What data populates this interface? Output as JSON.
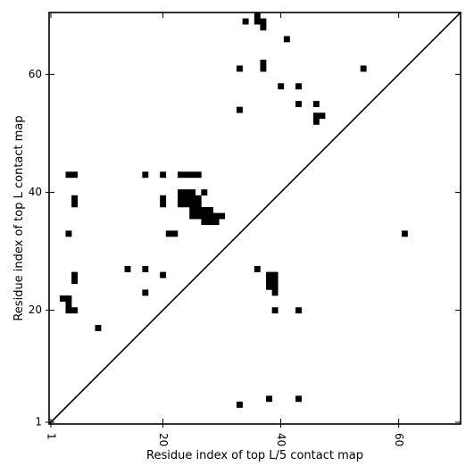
{
  "chart_data": {
    "type": "heatmap",
    "title": "",
    "xlabel": "Residue index of top L/5 contact map",
    "ylabel": "Residue index of top L contact map",
    "xlim": [
      0.7,
      70.5
    ],
    "ylim": [
      0.7,
      70.5
    ],
    "x_ticks": [
      1,
      20,
      40,
      60
    ],
    "y_ticks": [
      1,
      20,
      40,
      60
    ],
    "x_tick_labels": [
      "1",
      "20",
      "40",
      "60"
    ],
    "y_tick_labels": [
      "1",
      "20",
      "40",
      "60"
    ],
    "x_tick_rotation": -90,
    "diagonal_line": true,
    "cell_color": "#000000",
    "grid": false,
    "cells": [
      [
        34,
        69
      ],
      [
        36,
        69
      ],
      [
        37,
        69
      ],
      [
        36,
        70
      ],
      [
        37,
        68
      ],
      [
        41,
        66
      ],
      [
        37,
        62
      ],
      [
        37,
        61
      ],
      [
        33,
        61
      ],
      [
        54,
        61
      ],
      [
        40,
        58
      ],
      [
        43,
        58
      ],
      [
        43,
        55
      ],
      [
        46,
        55
      ],
      [
        33,
        54
      ],
      [
        46,
        53
      ],
      [
        47,
        53
      ],
      [
        46,
        52
      ],
      [
        4,
        43
      ],
      [
        5,
        43
      ],
      [
        17,
        43
      ],
      [
        20,
        43
      ],
      [
        23,
        43
      ],
      [
        24,
        43
      ],
      [
        25,
        43
      ],
      [
        26,
        43
      ],
      [
        23,
        40
      ],
      [
        24,
        40
      ],
      [
        25,
        40
      ],
      [
        27,
        40
      ],
      [
        5,
        39
      ],
      [
        20,
        39
      ],
      [
        23,
        39
      ],
      [
        24,
        39
      ],
      [
        25,
        39
      ],
      [
        26,
        39
      ],
      [
        5,
        38
      ],
      [
        20,
        38
      ],
      [
        23,
        38
      ],
      [
        24,
        38
      ],
      [
        25,
        38
      ],
      [
        26,
        38
      ],
      [
        25,
        37
      ],
      [
        26,
        37
      ],
      [
        27,
        37
      ],
      [
        28,
        37
      ],
      [
        25,
        36
      ],
      [
        26,
        36
      ],
      [
        27,
        36
      ],
      [
        28,
        36
      ],
      [
        29,
        36
      ],
      [
        30,
        36
      ],
      [
        27,
        35
      ],
      [
        28,
        35
      ],
      [
        29,
        35
      ],
      [
        4,
        33
      ],
      [
        21,
        33
      ],
      [
        22,
        33
      ],
      [
        61,
        33
      ],
      [
        14,
        27
      ],
      [
        17,
        27
      ],
      [
        36,
        27
      ],
      [
        5,
        26
      ],
      [
        20,
        26
      ],
      [
        38,
        26
      ],
      [
        39,
        26
      ],
      [
        5,
        25
      ],
      [
        38,
        25
      ],
      [
        39,
        25
      ],
      [
        38,
        24
      ],
      [
        39,
        24
      ],
      [
        17,
        23
      ],
      [
        39,
        23
      ],
      [
        3,
        22
      ],
      [
        4,
        22
      ],
      [
        4,
        21
      ],
      [
        4,
        20
      ],
      [
        5,
        20
      ],
      [
        39,
        20
      ],
      [
        43,
        20
      ],
      [
        9,
        17
      ],
      [
        38,
        5
      ],
      [
        43,
        5
      ],
      [
        33,
        4
      ]
    ]
  }
}
